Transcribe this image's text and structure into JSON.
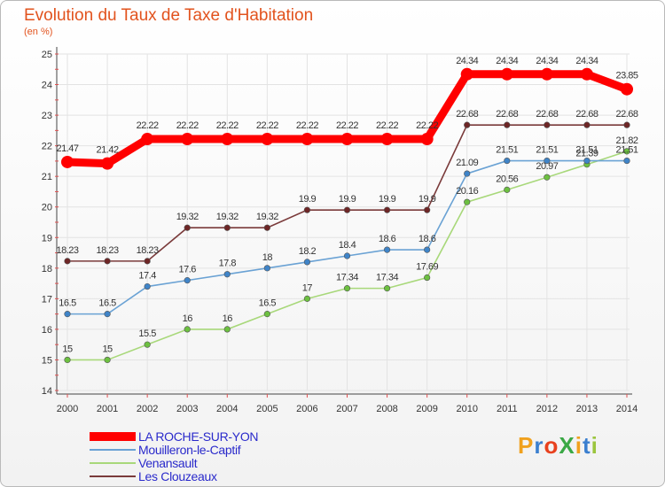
{
  "title": "Evolution du Taux de Taxe d'Habitation",
  "unit": "(en %)",
  "logo": {
    "text": "ProXiti",
    "colors": [
      "#f0a11e",
      "#3b7fcf",
      "#e8411e",
      "#3aa845",
      "#f0a11e",
      "#3b7fcf",
      "#9bc53d"
    ]
  },
  "chart_data": {
    "type": "line",
    "title": "Evolution du Taux de Taxe d'Habitation",
    "ylabel": "(en %)",
    "x": [
      "2000",
      "2001",
      "2002",
      "2003",
      "2004",
      "2005",
      "2006",
      "2007",
      "2008",
      "2009",
      "2010",
      "2011",
      "2012",
      "2013",
      "2014"
    ],
    "yticks": [
      14,
      15,
      16,
      17,
      18,
      19,
      20,
      21,
      22,
      23,
      24,
      25
    ],
    "ylim": [
      14,
      25
    ],
    "legend_position": "bottom-left",
    "series": [
      {
        "name": "LA ROCHE-SUR-YON",
        "color": "#ff0000",
        "thick": true,
        "values": [
          21.47,
          21.42,
          22.22,
          22.22,
          22.22,
          22.22,
          22.22,
          22.22,
          22.22,
          22.22,
          24.34,
          24.34,
          24.34,
          24.34,
          23.85
        ],
        "labels": [
          "21.47",
          "21.42",
          "22.22",
          "22.22",
          "22.22",
          "22.22",
          "22.22",
          "22.22",
          "22.22",
          "22.22",
          "24.34",
          "24.34",
          "24.34",
          "24.34",
          "23.85"
        ]
      },
      {
        "name": "Mouilleron-le-Captif",
        "color": "#6aa2d4",
        "marker": "#3f84c8",
        "values": [
          16.5,
          16.5,
          17.4,
          17.6,
          17.8,
          18,
          18.2,
          18.4,
          18.6,
          18.6,
          21.09,
          21.51,
          21.51,
          21.51,
          21.51
        ],
        "labels": [
          "16.5",
          "16.5",
          "17.4",
          "17.6",
          "17.8",
          "18",
          "18.2",
          "18.4",
          "18.6",
          "18.6",
          "21.09",
          "21.51",
          "21.51",
          "21.51",
          "21.51"
        ]
      },
      {
        "name": "Venansault",
        "color": "#a8d87a",
        "marker": "#6cc040",
        "values": [
          15,
          15,
          15.5,
          16,
          16,
          16.5,
          17,
          17.34,
          17.34,
          17.69,
          20.16,
          20.56,
          20.97,
          21.39,
          21.82
        ],
        "labels": [
          "15",
          "15",
          "15.5",
          "16",
          "16",
          "16.5",
          "17",
          "17.34",
          "17.34",
          "17.69",
          "20.16",
          "20.56",
          "20.97",
          "21.39",
          "21.82"
        ]
      },
      {
        "name": "Les Clouzeaux",
        "color": "#7a3a3a",
        "marker": "#6e2626",
        "values": [
          18.23,
          18.23,
          18.23,
          19.32,
          19.32,
          19.32,
          19.9,
          19.9,
          19.9,
          19.9,
          22.68,
          22.68,
          22.68,
          22.68,
          22.68
        ],
        "labels": [
          "18.23",
          "18.23",
          "18.23",
          "19.32",
          "19.32",
          "19.32",
          "19.9",
          "19.9",
          "19.9",
          "19.9",
          "22.68",
          "22.68",
          "22.68",
          "22.68",
          "22.68"
        ]
      }
    ]
  }
}
